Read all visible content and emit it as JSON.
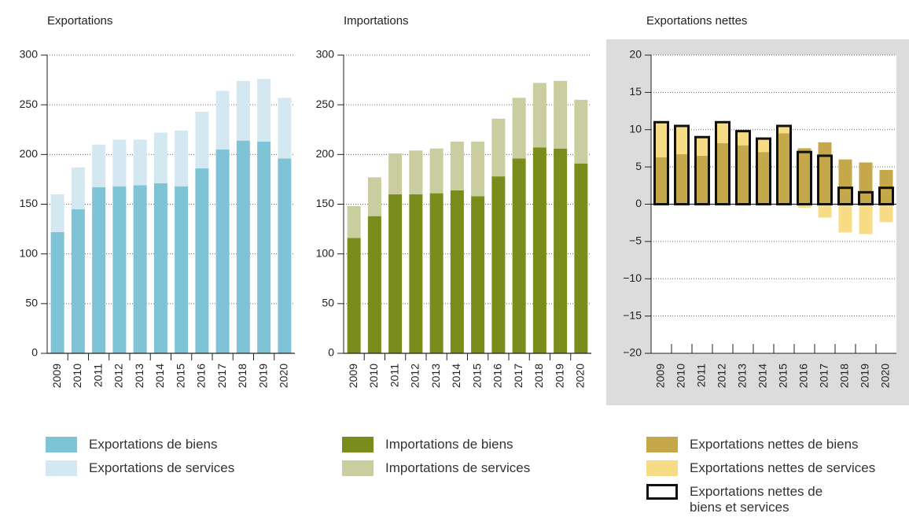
{
  "chart_data": [
    {
      "type": "bar",
      "stacked": true,
      "title": "Exportations",
      "grid": true,
      "categories": [
        "2009",
        "2010",
        "2011",
        "2012",
        "2013",
        "2014",
        "2015",
        "2016",
        "2017",
        "2018",
        "2019",
        "2020"
      ],
      "series": [
        {
          "name": "Exportations de biens",
          "color": "#7fc4d6",
          "values": [
            122,
            145,
            167,
            168,
            169,
            171,
            168,
            186,
            205,
            214,
            213,
            196
          ]
        },
        {
          "name": "Exportations de services",
          "color": "#d3e8f0",
          "values": [
            38,
            42,
            43,
            47,
            46,
            51,
            56,
            57,
            59,
            60,
            63,
            61
          ]
        }
      ],
      "ylim": [
        0,
        300
      ],
      "yticks": [
        0,
        50,
        100,
        150,
        200,
        250,
        300
      ]
    },
    {
      "type": "bar",
      "stacked": true,
      "title": "Importations",
      "grid": true,
      "categories": [
        "2009",
        "2010",
        "2011",
        "2012",
        "2013",
        "2014",
        "2015",
        "2016",
        "2017",
        "2018",
        "2019",
        "2020"
      ],
      "series": [
        {
          "name": "Importations de biens",
          "color": "#7a8c1b",
          "values": [
            116,
            138,
            160,
            160,
            161,
            164,
            158,
            178,
            196,
            207,
            206,
            191
          ]
        },
        {
          "name": "Importations de services",
          "color": "#c9cd9f",
          "values": [
            32,
            39,
            41,
            44,
            45,
            49,
            55,
            58,
            61,
            65,
            68,
            64
          ]
        }
      ],
      "ylim": [
        0,
        300
      ],
      "yticks": [
        0,
        50,
        100,
        150,
        200,
        250,
        300
      ]
    },
    {
      "type": "bar",
      "stacked": true,
      "title": "Exportations nettes",
      "grid": true,
      "categories": [
        "2009",
        "2010",
        "2011",
        "2012",
        "2013",
        "2014",
        "2015",
        "2016",
        "2017",
        "2018",
        "2019",
        "2020"
      ],
      "series": [
        {
          "name": "Exportations nettes de biens",
          "color": "#c4a84a",
          "values": [
            6.3,
            6.7,
            6.5,
            8.2,
            7.9,
            7.0,
            9.5,
            7.5,
            8.3,
            6.0,
            5.6,
            4.6
          ]
        },
        {
          "name": "Exportations nettes de services",
          "color": "#f5dc85",
          "values": [
            4.7,
            3.8,
            2.5,
            2.8,
            1.9,
            1.8,
            1.0,
            -0.5,
            -1.8,
            -3.8,
            -4.0,
            -2.4
          ]
        },
        {
          "name": "Exportations nettes de biens et services",
          "color": "#111111",
          "outline": true,
          "values": [
            11,
            10.5,
            9,
            11,
            9.8,
            8.8,
            10.5,
            7.0,
            6.5,
            2.2,
            1.6,
            2.2
          ]
        }
      ],
      "ylim": [
        -20,
        20
      ],
      "yticks": [
        {
          "value": -20,
          "label": "−20"
        },
        {
          "value": -15,
          "label": "−15"
        },
        {
          "value": -10,
          "label": "−10"
        },
        {
          "value": -5,
          "label": "−5"
        },
        0,
        5,
        10,
        15,
        20
      ]
    }
  ]
}
